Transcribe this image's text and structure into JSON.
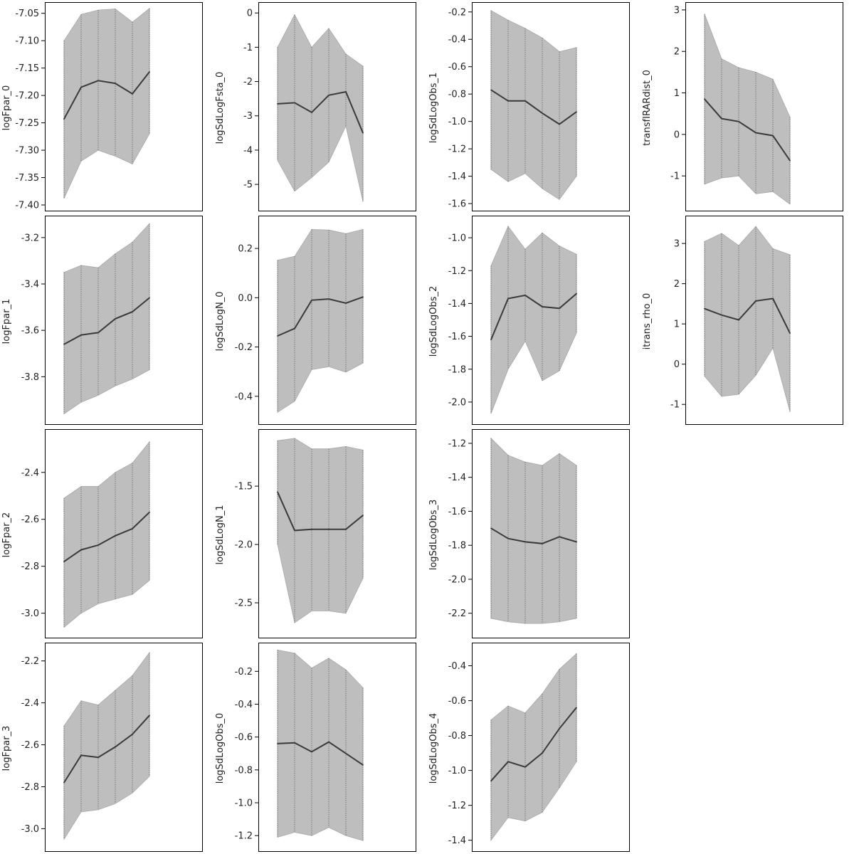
{
  "figure": {
    "colors": {
      "band": "#bebebe",
      "band_edge": "#a8a8a8",
      "line": "#3a3a3a",
      "guide": "#555555",
      "frame": "#000000",
      "background": "#ffffff"
    }
  },
  "chart_data": [
    {
      "type": "area",
      "title": "",
      "xlabel": "",
      "ylabel": "logFpar_0",
      "ylim": [
        -7.4,
        -7.04
      ],
      "yticks": [
        -7.4,
        -7.35,
        -7.3,
        -7.25,
        -7.2,
        -7.15,
        -7.1,
        -7.05
      ],
      "ytick_labels": [
        "-7.40",
        "-7.35",
        "-7.30",
        "-7.25",
        "-7.20",
        "-7.15",
        "-7.10",
        "-7.05"
      ],
      "x": [
        1,
        2,
        3,
        4,
        5,
        6
      ],
      "series": [
        {
          "mean": [
            -7.243,
            -7.185,
            -7.173,
            -7.178,
            -7.197,
            -7.157
          ],
          "lower": [
            -7.388,
            -7.32,
            -7.3,
            -7.311,
            -7.325,
            -7.27
          ],
          "upper": [
            -7.1,
            -7.052,
            -7.044,
            -7.042,
            -7.066,
            -7.041
          ]
        }
      ]
    },
    {
      "type": "area",
      "title": "",
      "xlabel": "",
      "ylabel": "logFpar_1",
      "ylim": [
        -3.98,
        -3.13
      ],
      "yticks": [
        -3.8,
        -3.6,
        -3.4,
        -3.2
      ],
      "ytick_labels": [
        "-3.8",
        "-3.6",
        "-3.4",
        "-3.2"
      ],
      "x": [
        1,
        2,
        3,
        4,
        5,
        6
      ],
      "series": [
        {
          "mean": [
            -3.66,
            -3.62,
            -3.61,
            -3.55,
            -3.52,
            -3.46
          ],
          "lower": [
            -3.96,
            -3.91,
            -3.88,
            -3.84,
            -3.81,
            -3.77
          ],
          "upper": [
            -3.35,
            -3.32,
            -3.33,
            -3.27,
            -3.22,
            -3.14
          ]
        }
      ]
    },
    {
      "type": "area",
      "title": "",
      "xlabel": "",
      "ylabel": "logFpar_2",
      "ylim": [
        -3.08,
        -2.24
      ],
      "yticks": [
        -3.0,
        -2.8,
        -2.6,
        -2.4
      ],
      "ytick_labels": [
        "-3.0",
        "-2.8",
        "-2.6",
        "-2.4"
      ],
      "x": [
        1,
        2,
        3,
        4,
        5,
        6
      ],
      "series": [
        {
          "mean": [
            -2.78,
            -2.73,
            -2.71,
            -2.67,
            -2.64,
            -2.57
          ],
          "lower": [
            -3.06,
            -3.0,
            -2.96,
            -2.94,
            -2.92,
            -2.86
          ],
          "upper": [
            -2.51,
            -2.46,
            -2.46,
            -2.4,
            -2.36,
            -2.27
          ]
        }
      ]
    },
    {
      "type": "area",
      "title": "",
      "xlabel": "",
      "ylabel": "logFpar_3",
      "ylim": [
        -3.08,
        -2.14
      ],
      "yticks": [
        -3.0,
        -2.8,
        -2.6,
        -2.4,
        -2.2
      ],
      "ytick_labels": [
        "-3.0",
        "-2.8",
        "-2.6",
        "-2.4",
        "-2.2"
      ],
      "x": [
        1,
        2,
        3,
        4,
        5,
        6
      ],
      "series": [
        {
          "mean": [
            -2.78,
            -2.65,
            -2.66,
            -2.61,
            -2.55,
            -2.46
          ],
          "lower": [
            -3.05,
            -2.92,
            -2.91,
            -2.88,
            -2.83,
            -2.75
          ],
          "upper": [
            -2.51,
            -2.39,
            -2.41,
            -2.34,
            -2.27,
            -2.16
          ]
        }
      ]
    },
    {
      "type": "area",
      "title": "",
      "xlabel": "",
      "ylabel": "logSdLogFsta_0",
      "ylim": [
        -5.6,
        0.15
      ],
      "yticks": [
        -5,
        -4,
        -3,
        -2,
        -1,
        0
      ],
      "ytick_labels": [
        "-5",
        "-4",
        "-3",
        "-2",
        "-1",
        "0"
      ],
      "x": [
        1,
        2,
        3,
        4,
        5,
        6
      ],
      "series": [
        {
          "mean": [
            -2.65,
            -2.62,
            -2.9,
            -2.4,
            -2.3,
            -3.5
          ],
          "lower": [
            -4.3,
            -5.2,
            -4.8,
            -4.35,
            -3.3,
            -5.5
          ],
          "upper": [
            -1.0,
            -0.05,
            -1.0,
            -0.45,
            -1.2,
            -1.55
          ]
        }
      ]
    },
    {
      "type": "area",
      "title": "",
      "xlabel": "",
      "ylabel": "logSdLogN_0",
      "ylim": [
        -0.49,
        0.31
      ],
      "yticks": [
        -0.4,
        -0.2,
        0.0,
        0.2
      ],
      "ytick_labels": [
        "-0.4",
        "-0.2",
        "0.0",
        "0.2"
      ],
      "x": [
        1,
        2,
        3,
        4,
        5,
        6
      ],
      "series": [
        {
          "mean": [
            -0.155,
            -0.125,
            -0.01,
            -0.005,
            -0.022,
            0.003
          ],
          "lower": [
            -0.465,
            -0.42,
            -0.292,
            -0.28,
            -0.302,
            -0.265
          ],
          "upper": [
            0.152,
            0.168,
            0.277,
            0.275,
            0.26,
            0.277
          ]
        }
      ]
    },
    {
      "type": "area",
      "title": "",
      "xlabel": "",
      "ylabel": "logSdLogN_1",
      "ylim": [
        -2.75,
        -1.06
      ],
      "yticks": [
        -2.5,
        -2.0,
        -1.5
      ],
      "ytick_labels": [
        "-2.5",
        "-2.0",
        "-1.5"
      ],
      "x": [
        1,
        2,
        3,
        4,
        5,
        6
      ],
      "series": [
        {
          "mean": [
            -1.55,
            -1.88,
            -1.87,
            -1.87,
            -1.87,
            -1.75
          ],
          "lower": [
            -2.0,
            -2.67,
            -2.57,
            -2.57,
            -2.59,
            -2.29
          ],
          "upper": [
            -1.11,
            -1.09,
            -1.18,
            -1.18,
            -1.16,
            -1.19
          ]
        }
      ]
    },
    {
      "type": "area",
      "title": "",
      "xlabel": "",
      "ylabel": "logSdLogObs_0",
      "ylim": [
        -1.26,
        -0.06
      ],
      "yticks": [
        -1.2,
        -1.0,
        -0.8,
        -0.6,
        -0.4,
        -0.2
      ],
      "ytick_labels": [
        "-1.2",
        "-1.0",
        "-0.8",
        "-0.6",
        "-0.4",
        "-0.2"
      ],
      "x": [
        1,
        2,
        3,
        4,
        5,
        6
      ],
      "series": [
        {
          "mean": [
            -0.64,
            -0.635,
            -0.69,
            -0.63,
            -0.7,
            -0.77
          ],
          "lower": [
            -1.21,
            -1.18,
            -1.2,
            -1.15,
            -1.2,
            -1.23
          ],
          "upper": [
            -0.07,
            -0.09,
            -0.18,
            -0.12,
            -0.19,
            -0.3
          ]
        }
      ]
    },
    {
      "type": "area",
      "title": "",
      "xlabel": "",
      "ylabel": "logSdLogObs_1",
      "ylim": [
        -1.61,
        -0.17
      ],
      "yticks": [
        -1.6,
        -1.4,
        -1.2,
        -1.0,
        -0.8,
        -0.6,
        -0.4,
        -0.2
      ],
      "ytick_labels": [
        "-1.6",
        "-1.4",
        "-1.2",
        "-1.0",
        "-0.8",
        "-0.6",
        "-0.4",
        "-0.2"
      ],
      "x": [
        1,
        2,
        3,
        4,
        5,
        6
      ],
      "series": [
        {
          "mean": [
            -0.77,
            -0.85,
            -0.85,
            -0.94,
            -1.02,
            -0.93
          ],
          "lower": [
            -1.35,
            -1.44,
            -1.38,
            -1.49,
            -1.57,
            -1.4
          ],
          "upper": [
            -0.19,
            -0.26,
            -0.32,
            -0.39,
            -0.49,
            -0.46
          ]
        }
      ]
    },
    {
      "type": "area",
      "title": "",
      "xlabel": "",
      "ylabel": "logSdLogObs_2",
      "ylim": [
        -2.1,
        -0.9
      ],
      "yticks": [
        -2.0,
        -1.8,
        -1.6,
        -1.4,
        -1.2,
        -1.0
      ],
      "ytick_labels": [
        "-2.0",
        "-1.8",
        "-1.6",
        "-1.4",
        "-1.2",
        "-1.0"
      ],
      "x": [
        1,
        2,
        3,
        4,
        5,
        6
      ],
      "series": [
        {
          "mean": [
            -1.62,
            -1.37,
            -1.35,
            -1.42,
            -1.43,
            -1.34
          ],
          "lower": [
            -2.07,
            -1.8,
            -1.63,
            -1.87,
            -1.81,
            -1.58
          ],
          "upper": [
            -1.17,
            -0.93,
            -1.07,
            -0.97,
            -1.05,
            -1.1
          ]
        }
      ]
    },
    {
      "type": "area",
      "title": "",
      "xlabel": "",
      "ylabel": "logSdLogObs_3",
      "ylim": [
        -2.31,
        -1.15
      ],
      "yticks": [
        -2.2,
        -2.0,
        -1.8,
        -1.6,
        -1.4,
        -1.2
      ],
      "ytick_labels": [
        "-2.2",
        "-2.0",
        "-1.8",
        "-1.6",
        "-1.4",
        "-1.2"
      ],
      "x": [
        1,
        2,
        3,
        4,
        5,
        6
      ],
      "series": [
        {
          "mean": [
            -1.7,
            -1.76,
            -1.78,
            -1.79,
            -1.75,
            -1.78
          ],
          "lower": [
            -2.23,
            -2.25,
            -2.26,
            -2.26,
            -2.25,
            -2.23
          ],
          "upper": [
            -1.17,
            -1.27,
            -1.31,
            -1.33,
            -1.26,
            -1.33
          ]
        }
      ]
    },
    {
      "type": "area",
      "title": "",
      "xlabel": "",
      "ylabel": "logSdLogObs_4",
      "ylim": [
        -1.43,
        -0.3
      ],
      "yticks": [
        -1.4,
        -1.2,
        -1.0,
        -0.8,
        -0.6,
        -0.4
      ],
      "ytick_labels": [
        "-1.4",
        "-1.2",
        "-1.0",
        "-0.8",
        "-0.6",
        "-0.4"
      ],
      "x": [
        1,
        2,
        3,
        4,
        5,
        6
      ],
      "series": [
        {
          "mean": [
            -1.06,
            -0.95,
            -0.98,
            -0.9,
            -0.76,
            -0.64
          ],
          "lower": [
            -1.4,
            -1.27,
            -1.29,
            -1.24,
            -1.1,
            -0.95
          ],
          "upper": [
            -0.71,
            -0.63,
            -0.67,
            -0.56,
            -0.42,
            -0.33
          ]
        }
      ]
    },
    {
      "type": "area",
      "title": "",
      "xlabel": "",
      "ylabel": "transfIRARdist_0",
      "ylim": [
        -1.7,
        3.05
      ],
      "yticks": [
        -1,
        0,
        1,
        2,
        3
      ],
      "ytick_labels": [
        "-1",
        "0",
        "1",
        "2",
        "3"
      ],
      "x": [
        1,
        2,
        3,
        4,
        5,
        6
      ],
      "series": [
        {
          "mean": [
            0.85,
            0.38,
            0.31,
            0.04,
            -0.03,
            -0.63
          ],
          "lower": [
            -1.2,
            -1.05,
            -1.0,
            -1.43,
            -1.38,
            -1.68
          ],
          "upper": [
            2.9,
            1.82,
            1.61,
            1.5,
            1.33,
            0.42
          ]
        }
      ]
    },
    {
      "type": "area",
      "title": "",
      "xlabel": "",
      "ylabel": "itrans_rho_0",
      "ylim": [
        -1.35,
        3.55
      ],
      "yticks": [
        -1,
        0,
        1,
        2,
        3
      ],
      "ytick_labels": [
        "-1",
        "0",
        "1",
        "2",
        "3"
      ],
      "x": [
        1,
        2,
        3,
        4,
        5,
        6
      ],
      "series": [
        {
          "mean": [
            1.38,
            1.22,
            1.1,
            1.57,
            1.63,
            0.77
          ],
          "lower": [
            -0.3,
            -0.8,
            -0.75,
            -0.28,
            0.4,
            -1.18
          ],
          "upper": [
            3.05,
            3.25,
            2.95,
            3.42,
            2.87,
            2.72
          ]
        }
      ]
    }
  ]
}
